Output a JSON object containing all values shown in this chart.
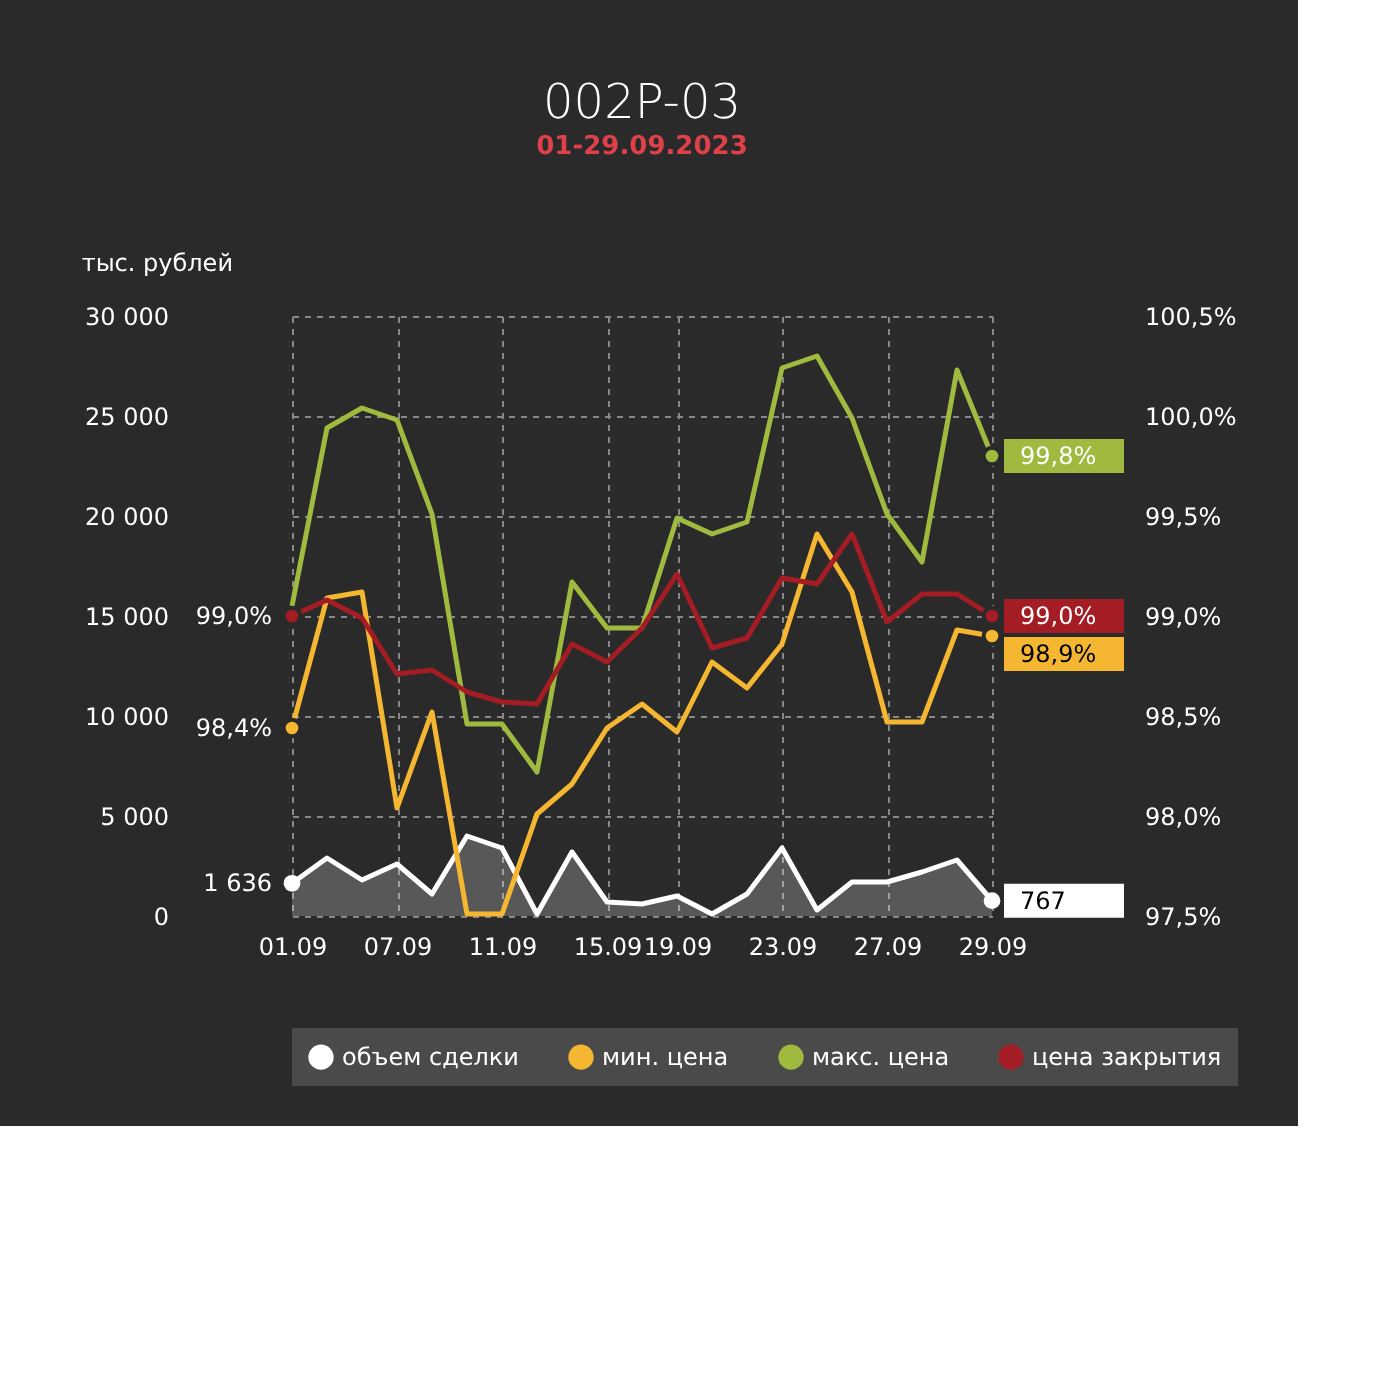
{
  "chart_data": {
    "type": "line",
    "title": "002P-03",
    "subtitle": "01-29.09.2023",
    "ylabel": "тыс. рублей",
    "categories": [
      "01.09",
      null,
      null,
      "07.09",
      null,
      null,
      "11.09",
      null,
      null,
      "15.09",
      null,
      "19.09",
      null,
      null,
      "23.09",
      null,
      null,
      "27.09",
      null,
      null,
      "29.09"
    ],
    "ylim": [
      0,
      30000
    ],
    "yticks": [
      0,
      {
        "value": 5000,
        "label": "5 000"
      },
      {
        "value": 10000,
        "label": "10 000"
      },
      {
        "value": 15000,
        "label": "15 000"
      },
      {
        "value": 20000,
        "label": "20 000"
      },
      {
        "value": 25000,
        "label": "25 000"
      },
      {
        "value": 30000,
        "label": "30 000"
      }
    ],
    "y2lim": [
      97.5,
      100.5
    ],
    "y2ticks": [
      {
        "value": 97.5,
        "label": "97,5%"
      },
      {
        "value": 98.0,
        "label": "98,0%"
      },
      {
        "value": 98.5,
        "label": "98,5%"
      },
      {
        "value": 99.0,
        "label": "99,0%"
      },
      {
        "value": 99.5,
        "label": "99,5%"
      },
      {
        "value": 100.0,
        "label": "100,0%"
      },
      {
        "value": 100.5,
        "label": "100,5%"
      }
    ],
    "series": [
      {
        "name": "объем сделки",
        "color": "#ffffff",
        "type": "area",
        "values": [
          1636,
          2900,
          1800,
          2600,
          1100,
          4000,
          3400,
          100,
          3200,
          700,
          600,
          1000,
          100,
          1100,
          3400,
          300,
          1700,
          1700,
          2200,
          2800,
          767
        ],
        "value_labels": [
          "1 636",
          null,
          null,
          null,
          null,
          null,
          null,
          null,
          null,
          null,
          null,
          null,
          null,
          null,
          null,
          null,
          null,
          null,
          null,
          null,
          "767"
        ]
      },
      {
        "name": "мин. цена",
        "color": "#f5b731",
        "axis": "y2",
        "values": [
          98.44,
          99.09,
          99.12,
          98.04,
          98.52,
          97.51,
          97.51,
          98.01,
          98.16,
          98.44,
          98.56,
          98.42,
          98.77,
          98.64,
          98.86,
          99.41,
          99.12,
          98.47,
          98.47,
          98.93,
          98.9
        ],
        "value_labels": [
          "98,4%",
          null,
          null,
          null,
          null,
          null,
          null,
          null,
          null,
          null,
          null,
          null,
          null,
          null,
          null,
          null,
          null,
          null,
          null,
          null,
          "98,9%"
        ]
      },
      {
        "name": "макс. цена",
        "color": "#9fba3f",
        "axis": "y2",
        "values": [
          99.05,
          99.94,
          100.04,
          99.98,
          99.51,
          98.46,
          98.46,
          98.22,
          99.17,
          98.94,
          98.94,
          99.49,
          99.41,
          99.47,
          100.24,
          100.3,
          99.99,
          99.51,
          99.27,
          100.23,
          99.8
        ],
        "value_labels": [
          null,
          null,
          null,
          null,
          null,
          null,
          null,
          null,
          null,
          null,
          null,
          null,
          null,
          null,
          null,
          null,
          null,
          null,
          null,
          null,
          "99,8%"
        ]
      },
      {
        "name": "цена закрытия",
        "color": "#a51d24",
        "axis": "y2",
        "values": [
          99.0,
          99.08,
          98.99,
          98.71,
          98.73,
          98.62,
          98.57,
          98.56,
          98.86,
          98.77,
          98.94,
          99.21,
          98.84,
          98.89,
          99.19,
          99.16,
          99.41,
          98.97,
          99.11,
          99.11,
          99.0
        ],
        "value_labels": [
          "99,0%",
          null,
          null,
          null,
          null,
          null,
          null,
          null,
          null,
          null,
          null,
          null,
          null,
          null,
          null,
          null,
          null,
          null,
          null,
          null,
          "99,0%"
        ]
      }
    ],
    "grid": true,
    "legend": "bottom",
    "marker": "none",
    "line_style": "solid"
  }
}
